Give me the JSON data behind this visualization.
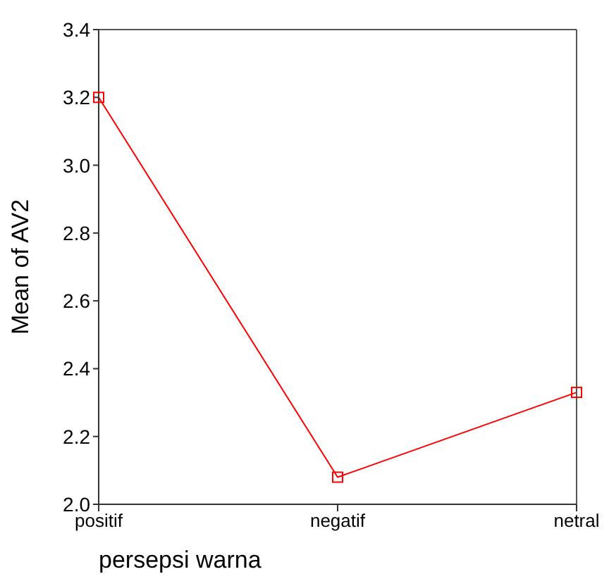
{
  "chart_data": {
    "type": "line",
    "xlabel": "persepsi warna",
    "ylabel": "Mean of AV2",
    "categories": [
      "positif",
      "negatif",
      "netral"
    ],
    "series": [
      {
        "color": "#ff0000",
        "values": [
          3.2,
          2.08,
          2.33
        ]
      }
    ],
    "ylim": [
      2.0,
      3.4
    ],
    "yticks": [
      {
        "value": 2.0,
        "label": "2.0"
      },
      {
        "value": 2.2,
        "label": "2.2"
      },
      {
        "value": 2.4,
        "label": "2.4"
      },
      {
        "value": 2.6,
        "label": "2.6"
      },
      {
        "value": 2.8,
        "label": "2.8"
      },
      {
        "value": 3.0,
        "label": "3.0"
      },
      {
        "value": 3.2,
        "label": "3.2"
      },
      {
        "value": 3.4,
        "label": "3.4"
      }
    ],
    "marker": "square",
    "line_style": "solid"
  }
}
